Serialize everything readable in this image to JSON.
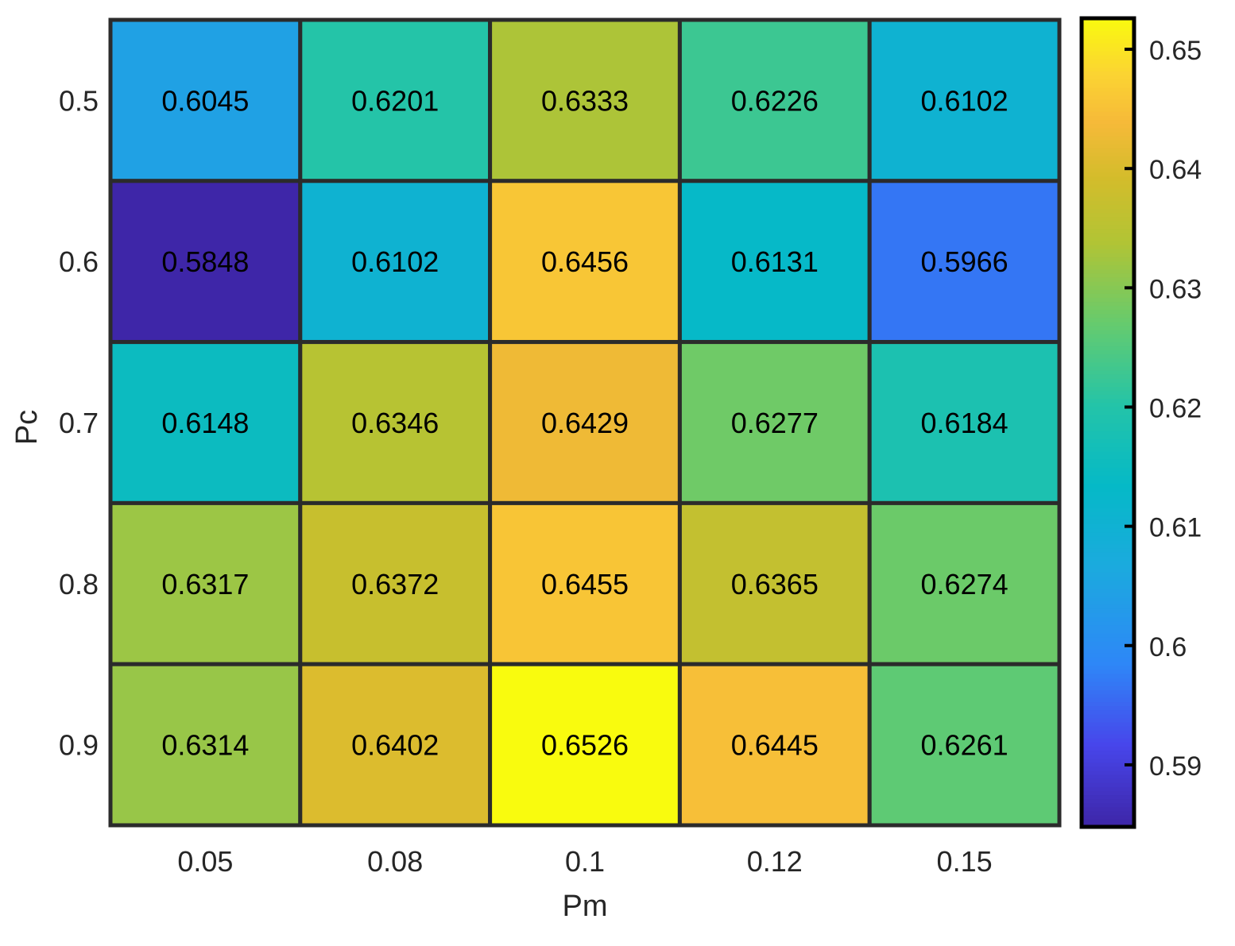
{
  "chart_data": {
    "type": "heatmap",
    "title": "",
    "xlabel": "Pm",
    "ylabel": "Pc",
    "x_categories": [
      "0.05",
      "0.08",
      "0.1",
      "0.12",
      "0.15"
    ],
    "y_categories": [
      "0.5",
      "0.6",
      "0.7",
      "0.8",
      "0.9"
    ],
    "values": [
      [
        0.6045,
        0.6201,
        0.6333,
        0.6226,
        0.6102
      ],
      [
        0.5848,
        0.6102,
        0.6456,
        0.6131,
        0.5966
      ],
      [
        0.6148,
        0.6346,
        0.6429,
        0.6277,
        0.6184
      ],
      [
        0.6317,
        0.6372,
        0.6455,
        0.6365,
        0.6274
      ],
      [
        0.6314,
        0.6402,
        0.6526,
        0.6445,
        0.6261
      ]
    ],
    "cell_labels": [
      [
        "0.6045",
        "0.6201",
        "0.6333",
        "0.6226",
        "0.6102"
      ],
      [
        "0.5848",
        "0.6102",
        "0.6456",
        "0.6131",
        "0.5966"
      ],
      [
        "0.6148",
        "0.6346",
        "0.6429",
        "0.6277",
        "0.6184"
      ],
      [
        "0.6317",
        "0.6372",
        "0.6455",
        "0.6365",
        "0.6274"
      ],
      [
        "0.6314",
        "0.6402",
        "0.6526",
        "0.6445",
        "0.6261"
      ]
    ],
    "colorbar": {
      "range": [
        0.5848,
        0.6526
      ],
      "ticks": [
        0.59,
        0.6,
        0.61,
        0.62,
        0.63,
        0.64,
        0.65
      ],
      "tick_labels": [
        "0.59",
        "0.6",
        "0.61",
        "0.62",
        "0.63",
        "0.64",
        "0.65"
      ],
      "colormap": "parula"
    },
    "grid_line_color": "#2b2b2b",
    "legend": "colorbar-right"
  }
}
